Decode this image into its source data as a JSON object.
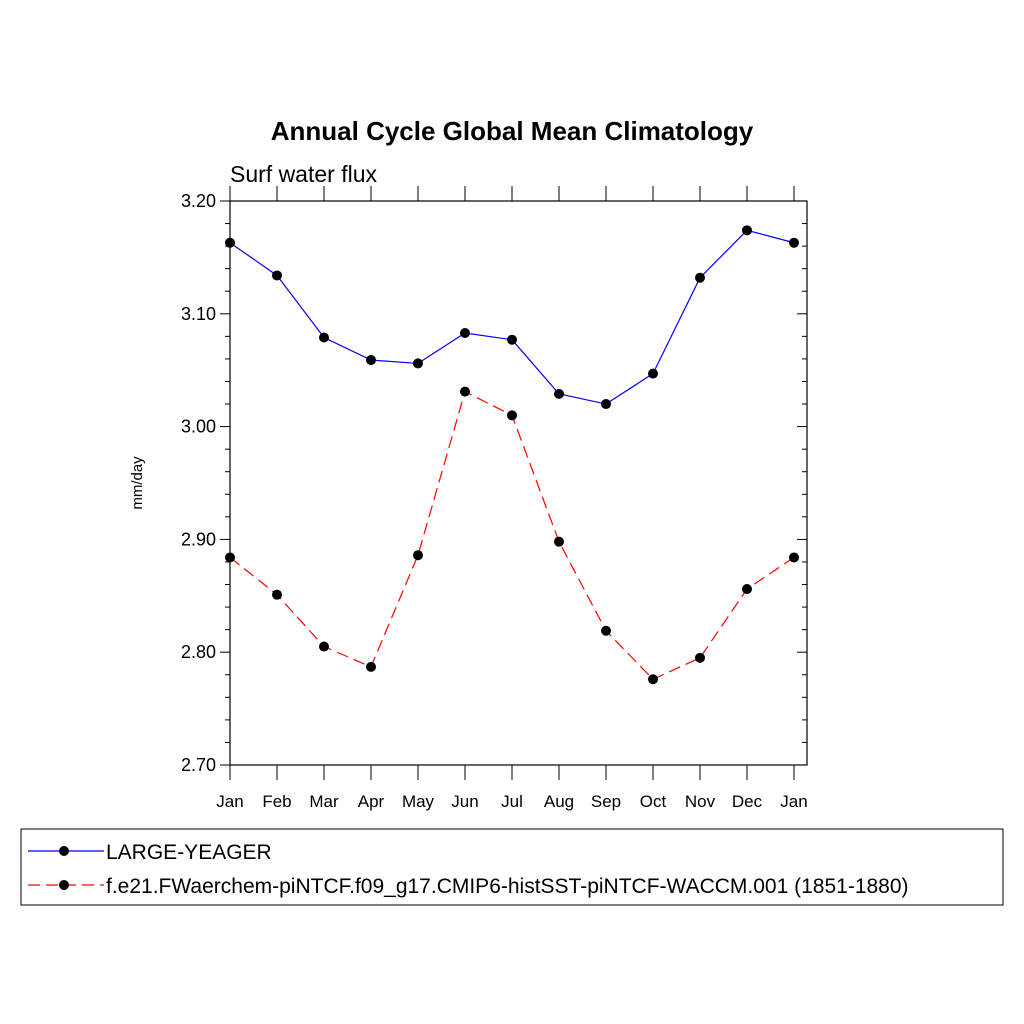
{
  "chart_data": {
    "type": "line",
    "title": "Annual Cycle Global Mean Climatology",
    "subtitle": "Surf water flux",
    "xlabel": "",
    "ylabel": "mm/day",
    "categories": [
      "Jan",
      "Feb",
      "Mar",
      "Apr",
      "May",
      "Jun",
      "Jul",
      "Aug",
      "Sep",
      "Oct",
      "Nov",
      "Dec",
      "Jan"
    ],
    "ylim": [
      2.7,
      3.2
    ],
    "yticks": [
      "2.70",
      "2.80",
      "2.90",
      "3.00",
      "3.10",
      "3.20"
    ],
    "ytick_values": [
      2.7,
      2.8,
      2.9,
      3.0,
      3.1,
      3.2
    ],
    "grid": false,
    "legend_position": "bottom",
    "series": [
      {
        "name": "LARGE-YEAGER",
        "color": "#0000ff",
        "style": "solid",
        "values": [
          3.163,
          3.134,
          3.079,
          3.059,
          3.056,
          3.083,
          3.077,
          3.029,
          3.02,
          3.047,
          3.132,
          3.174,
          3.163
        ]
      },
      {
        "name": "f.e21.FWaerchem-piNTCF.f09_g17.CMIP6-histSST-piNTCF-WACCM.001 (1851-1880)",
        "color": "#ff0000",
        "style": "dashed",
        "values": [
          2.884,
          2.851,
          2.805,
          2.787,
          2.886,
          3.031,
          3.01,
          2.898,
          2.819,
          2.776,
          2.795,
          2.856,
          2.884
        ]
      }
    ],
    "marker_color": "#000000"
  }
}
